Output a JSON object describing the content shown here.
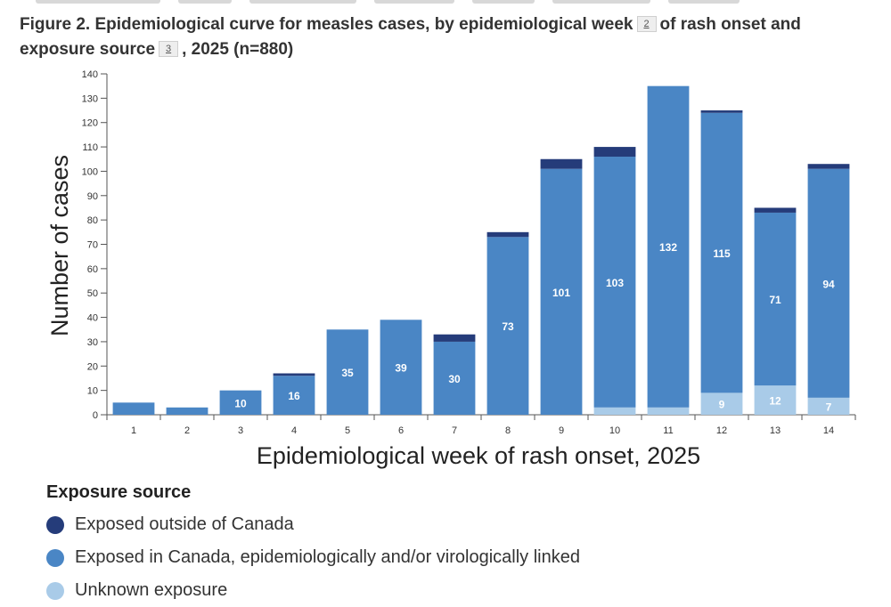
{
  "figure": {
    "title_part1": "Figure 2. Epidemiological curve for measles cases, by epidemiological week",
    "footnote_week": "2",
    "title_part2": "of rash onset and exposure source",
    "footnote_source": "3",
    "title_part3": ", 2025 (n=880)"
  },
  "chart_data": {
    "type": "bar",
    "stacked": true,
    "xlabel": "Epidemiological week of rash onset, 2025",
    "ylabel": "Number of cases",
    "ylim": [
      0,
      140
    ],
    "yticks": [
      0,
      10,
      20,
      30,
      40,
      50,
      60,
      70,
      80,
      90,
      100,
      110,
      120,
      130,
      140
    ],
    "grid": false,
    "legend_position": "bottom-left",
    "categories": [
      "1",
      "2",
      "3",
      "4",
      "5",
      "6",
      "7",
      "8",
      "9",
      "10",
      "11",
      "12",
      "13",
      "14"
    ],
    "series": [
      {
        "name": "Unknown exposure",
        "color": "#a9cbe8",
        "values": [
          0,
          0,
          0,
          0,
          0,
          0,
          0,
          0,
          0,
          3,
          3,
          9,
          12,
          7
        ]
      },
      {
        "name": "Exposed in Canada, epidemiologically and/or virologically linked",
        "color": "#4a86c5",
        "values": [
          5,
          3,
          10,
          16,
          35,
          39,
          30,
          73,
          101,
          103,
          132,
          115,
          71,
          94
        ]
      },
      {
        "name": "Exposed outside of Canada",
        "color": "#253c7a",
        "values": [
          0,
          0,
          0,
          1,
          0,
          0,
          3,
          2,
          4,
          4,
          0,
          1,
          2,
          2
        ]
      }
    ],
    "data_labels": [
      {
        "series": 1,
        "category": "3",
        "text": "10"
      },
      {
        "series": 1,
        "category": "4",
        "text": "16"
      },
      {
        "series": 1,
        "category": "5",
        "text": "35"
      },
      {
        "series": 1,
        "category": "6",
        "text": "39"
      },
      {
        "series": 1,
        "category": "7",
        "text": "30"
      },
      {
        "series": 1,
        "category": "8",
        "text": "73"
      },
      {
        "series": 1,
        "category": "9",
        "text": "101"
      },
      {
        "series": 1,
        "category": "10",
        "text": "103"
      },
      {
        "series": 1,
        "category": "11",
        "text": "132"
      },
      {
        "series": 1,
        "category": "12",
        "text": "115"
      },
      {
        "series": 1,
        "category": "13",
        "text": "71"
      },
      {
        "series": 1,
        "category": "14",
        "text": "94"
      },
      {
        "series": 0,
        "category": "12",
        "text": "9"
      },
      {
        "series": 0,
        "category": "13",
        "text": "12"
      },
      {
        "series": 0,
        "category": "14",
        "text": "7"
      }
    ]
  },
  "legend": {
    "title": "Exposure source",
    "items": [
      {
        "label": "Exposed outside of Canada",
        "color": "#253c7a"
      },
      {
        "label": "Exposed in Canada, epidemiologically and/or virologically linked",
        "color": "#4a86c5"
      },
      {
        "label": "Unknown exposure",
        "color": "#a9cbe8"
      }
    ]
  }
}
